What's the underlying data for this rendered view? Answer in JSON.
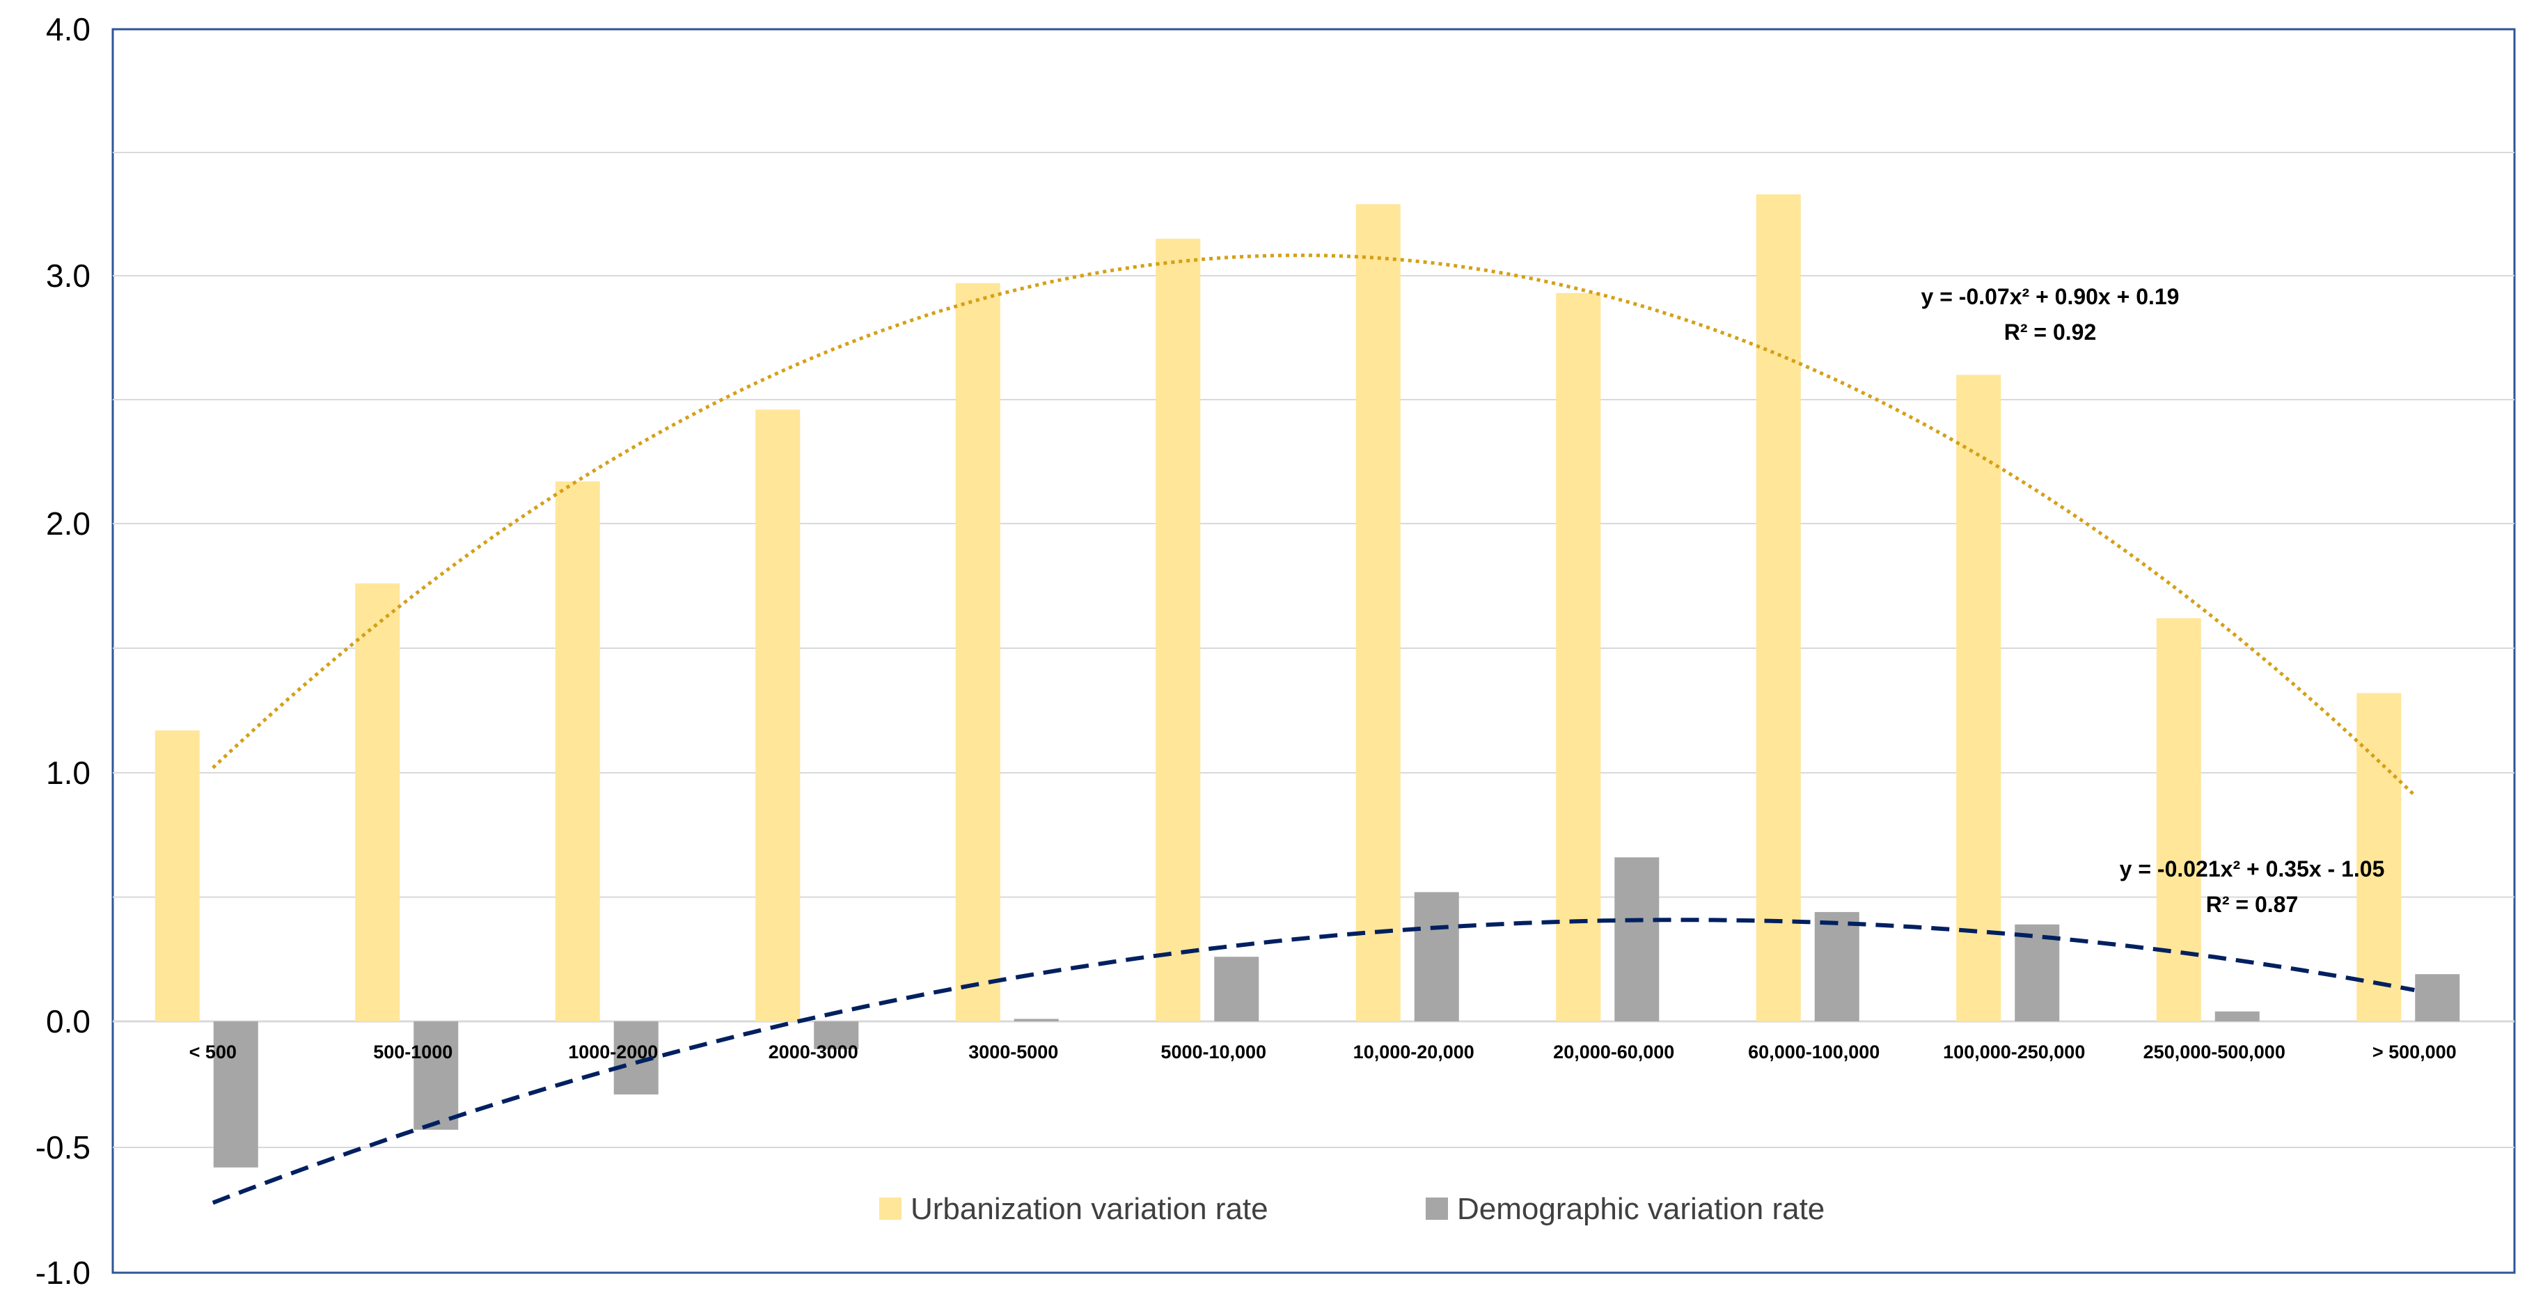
{
  "chart_data": {
    "type": "bar",
    "title": "",
    "xlabel": "",
    "ylabel": "",
    "ylim": [
      -1.0,
      4.0
    ],
    "grid": true,
    "y_ticks": [
      {
        "value": 4.0,
        "label": "4.0"
      },
      {
        "value": 3.0,
        "label": "3.0"
      },
      {
        "value": 2.0,
        "label": "2.0"
      },
      {
        "value": 1.0,
        "label": "1.0"
      },
      {
        "value": 0.0,
        "label": "0.0"
      },
      {
        "value": -0.5,
        "label": "-0.5"
      },
      {
        "value": -1.0,
        "label": "-1.0"
      }
    ],
    "categories": [
      "< 500",
      "500-1000",
      "1000-2000",
      "2000-3000",
      "3000-5000",
      "5000-10,000",
      "10,000-20,000",
      "20,000-60,000",
      "60,000-100,000",
      "100,000-250,000",
      "250,000-500,000",
      "> 500,000"
    ],
    "series": [
      {
        "name": "Urbanization variation rate",
        "color": "#FFE699",
        "values": [
          1.17,
          1.76,
          2.17,
          2.46,
          2.97,
          3.15,
          3.29,
          2.93,
          3.33,
          2.6,
          1.62,
          1.32
        ],
        "trendline": {
          "type": "polynomial",
          "coefficients": [
            -0.07,
            0.9,
            0.19
          ],
          "equation": "y = -0.07x² + 0.90x + 0.19",
          "r2": "R² = 0.92",
          "color": "#D4A017",
          "style": "dotted"
        }
      },
      {
        "name": "Demographic variation rate",
        "color": "#A6A6A6",
        "values": [
          -0.58,
          -0.43,
          -0.29,
          -0.11,
          0.01,
          0.26,
          0.52,
          0.66,
          0.44,
          0.39,
          0.04,
          0.19
        ],
        "trendline": {
          "type": "polynomial",
          "coefficients": [
            -0.021,
            0.35,
            -1.05
          ],
          "equation": "y = -0.021x² + 0.35x - 1.05",
          "r2": "R² = 0.87",
          "color": "#002060",
          "style": "dashed"
        }
      }
    ],
    "legend": "bottom"
  }
}
